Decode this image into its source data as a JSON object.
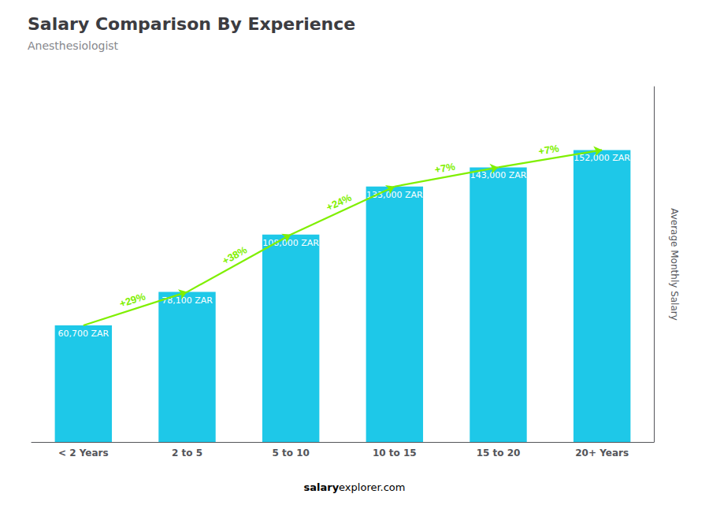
{
  "chart_data": {
    "type": "bar",
    "title": "Salary Comparison By Experience",
    "subtitle": "Anesthesiologist",
    "ylabel": "Average Monthly Salary",
    "categories": [
      "< 2 Years",
      "2 to 5",
      "5 to 10",
      "10 to 15",
      "15 to 20",
      "20+ Years"
    ],
    "values": [
      60700,
      78100,
      108000,
      133000,
      143000,
      152000
    ],
    "value_labels": [
      "60,700 ZAR",
      "78,100 ZAR",
      "108,000 ZAR",
      "133,000 ZAR",
      "143,000 ZAR",
      "152,000 ZAR"
    ],
    "data_labels": true,
    "color": "#1EC8E8",
    "ylim": [
      0,
      185000
    ],
    "tick_labels": "x",
    "grid": false,
    "annotations": [
      {
        "text": "+29%",
        "color": "#7FEF00"
      },
      {
        "text": "+38%",
        "color": "#7FEF00"
      },
      {
        "text": "+24%",
        "color": "#7FEF00"
      },
      {
        "text": "+7%",
        "color": "#7FEF00"
      },
      {
        "text": "+7%",
        "color": "#7FEF00"
      },
      {
        "text": "salary"
      },
      {
        "text": "explorer.com"
      }
    ]
  }
}
